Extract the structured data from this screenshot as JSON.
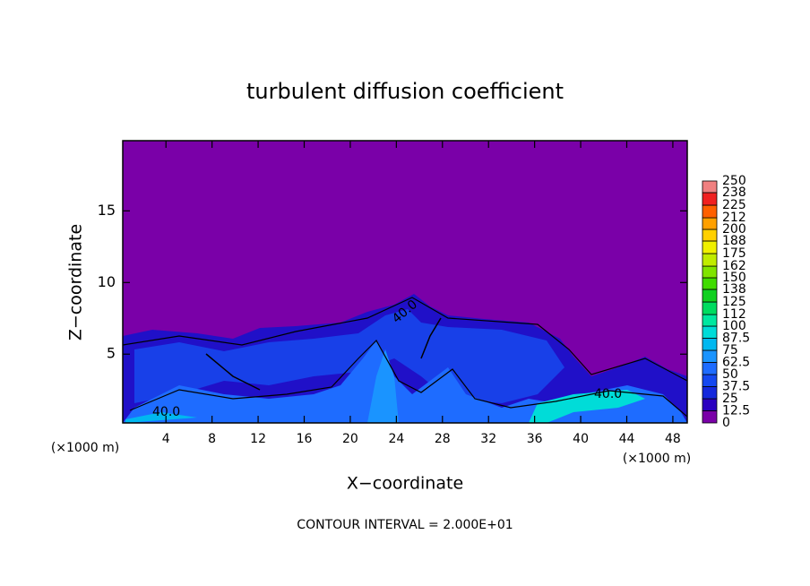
{
  "chart_data": {
    "type": "contour",
    "title": "turbulent diffusion coefficient",
    "xlabel": "X−coordinate",
    "ylabel": "Z−coordinate",
    "x_unit_labels": [
      "(×1000 m)",
      "(×1000 m)"
    ],
    "footnote": "CONTOUR INTERVAL = 2.000E+01",
    "xlim": [
      0.25,
      49.25
    ],
    "xticks": [
      4,
      8,
      12,
      16,
      20,
      24,
      28,
      32,
      36,
      40,
      44,
      48
    ],
    "ylim": [
      0.2,
      19.9
    ],
    "yticks": [
      5,
      10,
      15
    ],
    "contour_labels": [
      "40.0",
      "40.0",
      "40.0"
    ],
    "colorbar": {
      "ticks": [
        0,
        12.5,
        25,
        37.5,
        50,
        62.5,
        75,
        87.5,
        100,
        112,
        125,
        138,
        150,
        162,
        175,
        188,
        200,
        212,
        225,
        238,
        250
      ],
      "colors": [
        "#7a00a8",
        "#2a00c0",
        "#1428dc",
        "#1448f0",
        "#1e6cff",
        "#1a94ff",
        "#00b8f0",
        "#00dcd8",
        "#00e8a0",
        "#00dc60",
        "#10d020",
        "#40dc00",
        "#80e400",
        "#c0ec00",
        "#f0f000",
        "#ffd000",
        "#ffa000",
        "#ff6000",
        "#f02020",
        "#f08080"
      ]
    }
  }
}
